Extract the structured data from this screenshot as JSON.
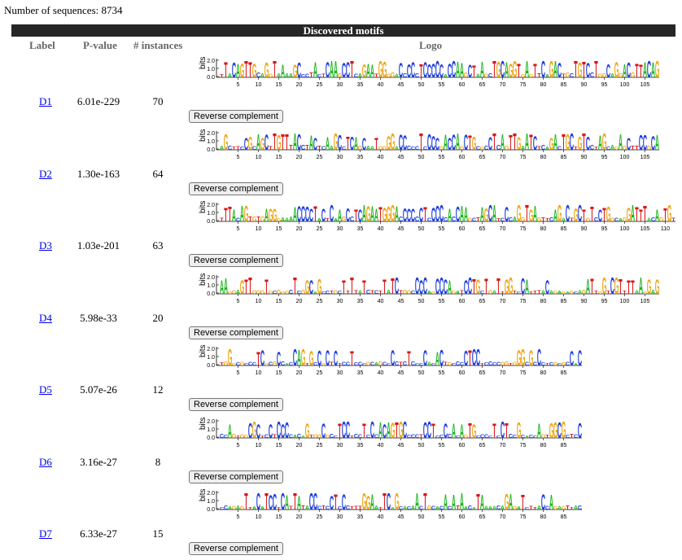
{
  "header": {
    "num_sequences_label": "Number of sequences: 8734"
  },
  "table": {
    "title": "Discovered motifs",
    "columns": {
      "label": "Label",
      "pvalue": "P-value",
      "instances": "# instances",
      "logo": "Logo"
    },
    "reverse_label": "Reverse complement",
    "axis_label": "bits",
    "y_ticks": [
      "2.0",
      "1.0",
      "0.0"
    ],
    "motifs": [
      {
        "label": "D1",
        "pvalue": "6.01e-229",
        "instances": "70",
        "length": 108,
        "x_ticks": [
          "5",
          "10",
          "15",
          "20",
          "25",
          "30",
          "35",
          "40",
          "45",
          "50",
          "55",
          "60",
          "65",
          "70",
          "75",
          "80",
          "85",
          "90",
          "95",
          "100",
          "105"
        ],
        "seq": "TTACAGTTGCAGGTAAAAGCCCTACTCAAGCCTCAGAATGGGGACCCCCTCCCCCACCAAGCTAAGCTGCAGGTGAGTTCAGACTGCTGTCCTGGCAGGACG"
      },
      {
        "label": "D2",
        "pvalue": "1.30e-163",
        "instances": "64",
        "length": 108,
        "x_ticks": [
          "5",
          "10",
          "15",
          "20",
          "25",
          "30",
          "35",
          "40",
          "45",
          "50",
          "55",
          "60",
          "65",
          "70",
          "75",
          "80",
          "85",
          "90",
          "95",
          "100",
          "105"
        ],
        "seq": "AGCTTCCGCAGCTTGTTTACCTACTCAAGCCTCAGCAATGGGGACCCCCTCCCCGACCAGCTGCGCCTCAGTTGAATCTCAGACTGCTGTCCTAGCAG"
      },
      {
        "label": "D3",
        "pvalue": "1.03e-201",
        "instances": "63",
        "length": 112,
        "x_ticks": [
          "5",
          "10",
          "15",
          "20",
          "25",
          "30",
          "35",
          "40",
          "45",
          "50",
          "55",
          "60",
          "65",
          "70",
          "75",
          "80",
          "85",
          "90",
          "95",
          "100",
          "105",
          "110"
        ],
        "seq": "TTTACAGTGTGAGGGAAAACCCCTACTCAAGCCTCAGAATGGGACCCCCCTCCCCCACCAAGCTAGCATCCCAGGTGAGTTCAGACTGCTGTCCTGGCAGGA"
      },
      {
        "label": "D4",
        "pvalue": "5.98e-33",
        "instances": "20",
        "length": 108,
        "x_ticks": [
          "5",
          "10",
          "15",
          "20",
          "25",
          "30",
          "35",
          "40",
          "45",
          "50",
          "55",
          "60",
          "65",
          "70",
          "75",
          "80",
          "85",
          "90",
          "95",
          "100",
          "105"
        ],
        "seq": "AAGGAGTTGGGTGCGGGCTCGGCAGCCTGCTTTTATCTCTTATCTGGCCCCAGCCCAGATCCTGCTGATTGGTCCATTTACAGAGAGCAGATTGGTCGTTTT"
      },
      {
        "label": "D5",
        "pvalue": "5.07e-26",
        "instances": "12",
        "length": 89,
        "x_ticks": [
          "5",
          "10",
          "15",
          "20",
          "25",
          "30",
          "35",
          "40",
          "45",
          "50",
          "55",
          "60",
          "65",
          "70",
          "75",
          "80",
          "85"
        ],
        "seq": "TGGGCGCCCTCGCGCCACCAGTGCCGCTCTCCTCCCGCAGCCCCTCTCCCCACACTGCCCCTCCTCCCCGG"
      },
      {
        "label": "D6",
        "pvalue": "3.16e-27",
        "instances": "8",
        "length": 89,
        "x_ticks": [
          "5",
          "10",
          "15",
          "20",
          "25",
          "30",
          "35",
          "40",
          "45",
          "50",
          "55",
          "60",
          "65",
          "70",
          "75",
          "80",
          "85"
        ],
        "seq": "CCAGTGGCGCTCCTCCCCACAGTGGCGCCTCCTCCTCCCACAGTGCCCCTCCTCCCCACAGTGCCCCTCCTCCGCA"
      },
      {
        "label": "D7",
        "pvalue": "6.33e-27",
        "instances": "15",
        "length": 89,
        "x_ticks": [
          "5",
          "10",
          "15",
          "20",
          "25",
          "30",
          "35",
          "40",
          "45",
          "50",
          "55",
          "60",
          "65",
          "70",
          "75",
          "80",
          "85"
        ],
        "seq": "CCAGAGTTACATCCTCATTATACCCTCCTCCCTTTGGAATTCAGCACAACTGCACACATAACATAAAACAGAGATCTTA"
      }
    ]
  },
  "colors": {
    "A": "#1fb51f",
    "C": "#1b3bdb",
    "G": "#f0a818",
    "T": "#d71818",
    "header_bg": "#262626",
    "link": "#0000ee"
  }
}
